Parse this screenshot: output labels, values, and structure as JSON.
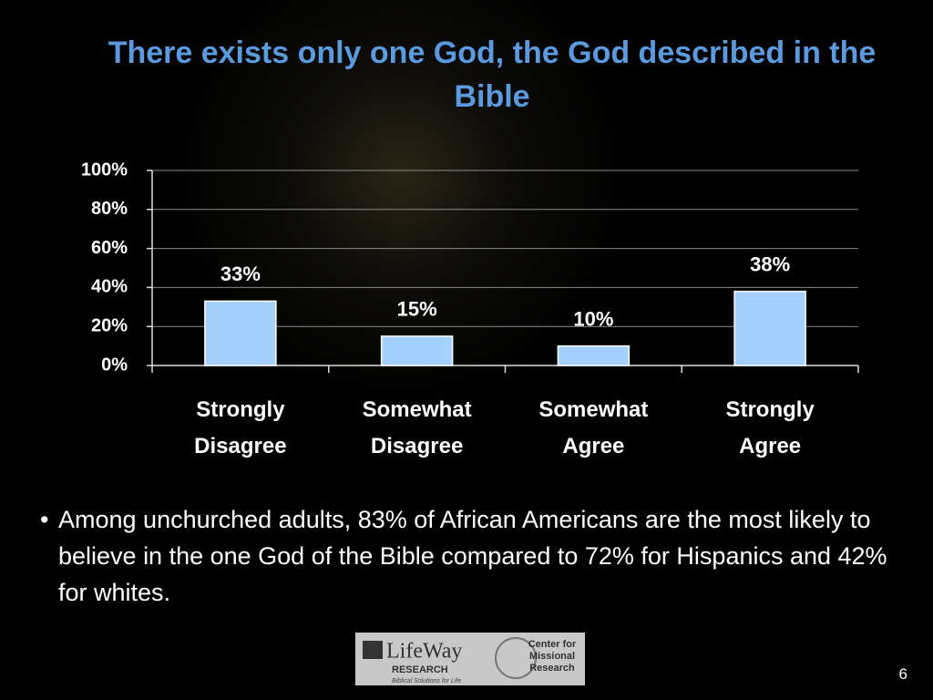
{
  "chart_data": {
    "type": "bar",
    "title": "There exists only one God, the God described in the Bible",
    "categories": [
      "Strongly Disagree",
      "Somewhat Disagree",
      "Somewhat Agree",
      "Strongly Agree"
    ],
    "values": [
      33,
      15,
      10,
      38
    ],
    "value_labels": [
      "33%",
      "15%",
      "10%",
      "38%"
    ],
    "color": "#a3d0ff",
    "ylim": [
      0,
      100
    ],
    "yticks": [
      {
        "value": 0,
        "label": "0%"
      },
      {
        "value": 20,
        "label": "20%"
      },
      {
        "value": 40,
        "label": "40%"
      },
      {
        "value": 60,
        "label": "60%"
      },
      {
        "value": 80,
        "label": "80%"
      },
      {
        "value": 100,
        "label": "100%"
      }
    ],
    "grid": true
  },
  "bullet": "Among unchurched adults, 83% of African Americans are the most likely to believe in the one God of the Bible compared to 72% for Hispanics and 42% for whites.",
  "logos": {
    "lifeway": "LifeWay",
    "lifeway_sub": "RESEARCH",
    "lifeway_tagline": "Biblical Solutions for Life",
    "center": "Center for Missional Research"
  },
  "page_number": "6"
}
